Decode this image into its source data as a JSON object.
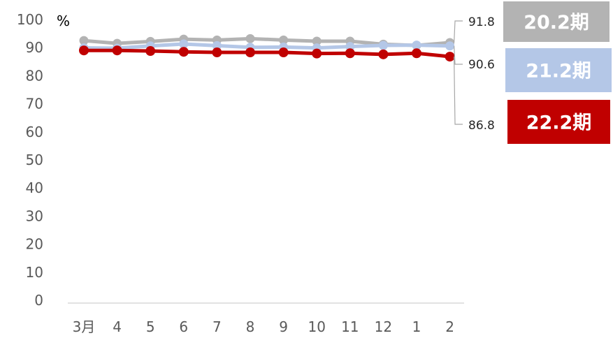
{
  "chart_data": {
    "type": "line",
    "unit_label": "%",
    "ylim": [
      0,
      100
    ],
    "yticks": [
      "0",
      "10",
      "20",
      "30",
      "40",
      "50",
      "60",
      "70",
      "80",
      "90",
      "100"
    ],
    "categories": [
      "3月",
      "4",
      "5",
      "6",
      "7",
      "8",
      "9",
      "10",
      "11",
      "12",
      "1",
      "2"
    ],
    "grid": false,
    "legend_position": "right",
    "series": [
      {
        "name": "20.2期",
        "color": "#b3b3b3",
        "values": [
          92.5,
          91.5,
          92.2,
          93.0,
          92.7,
          93.2,
          92.7,
          92.3,
          92.3,
          91.2,
          90.8,
          91.8
        ],
        "end_label": "91.8"
      },
      {
        "name": "21.2期",
        "color": "#b4c7e7",
        "values": [
          89.9,
          89.8,
          90.6,
          91.3,
          90.7,
          90.1,
          90.2,
          89.9,
          90.4,
          90.8,
          90.9,
          90.6
        ],
        "end_label": "90.6"
      },
      {
        "name": "22.2期",
        "color": "#c00000",
        "values": [
          89.0,
          89.0,
          88.8,
          88.5,
          88.3,
          88.3,
          88.3,
          87.9,
          88.0,
          87.6,
          88.0,
          86.8
        ],
        "end_label": "86.8"
      }
    ]
  }
}
